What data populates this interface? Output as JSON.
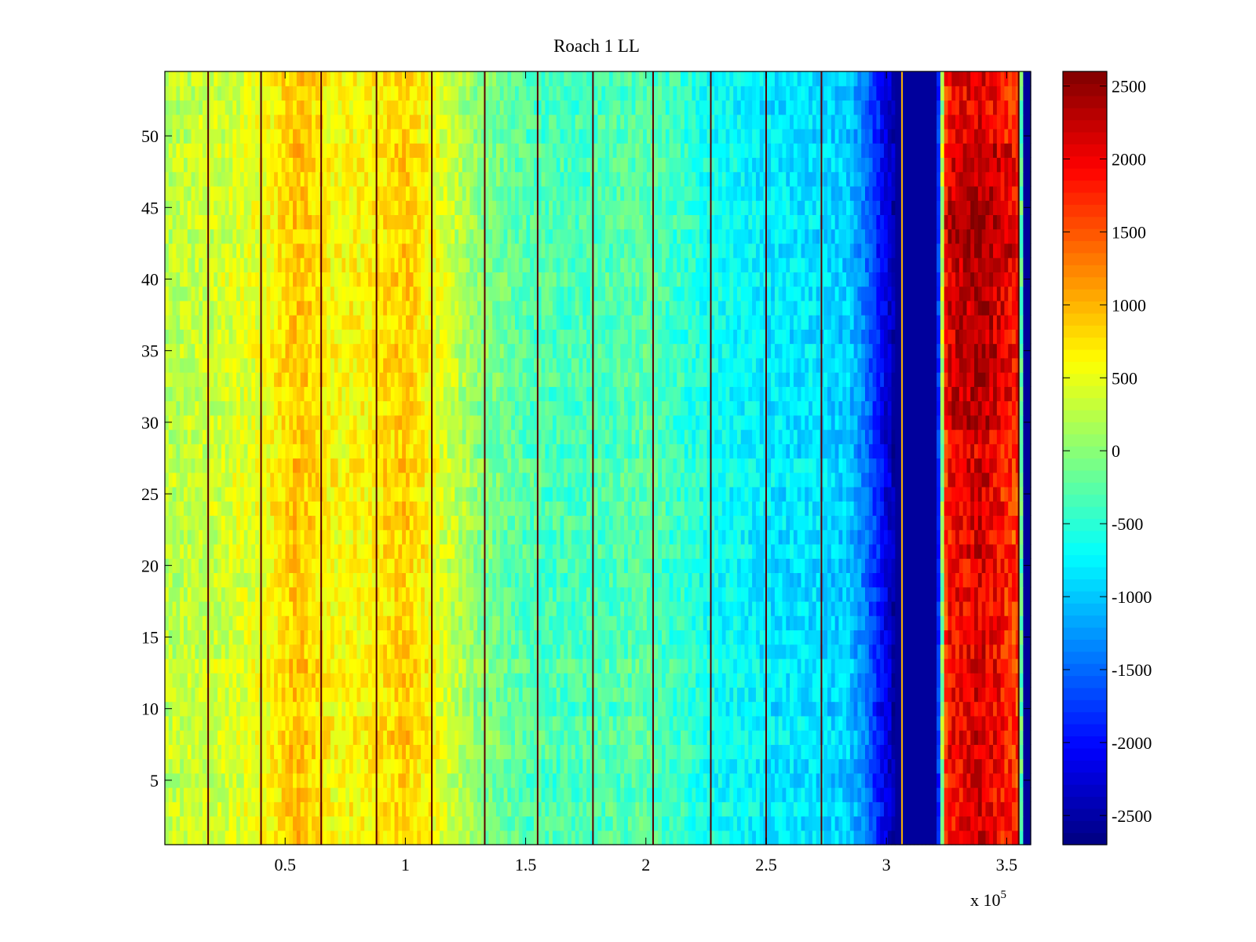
{
  "chart_data": {
    "type": "heatmap",
    "title": "Roach 1 LL",
    "xlabel": "",
    "ylabel": "",
    "x_range": [
      0,
      360000
    ],
    "y_range": [
      0.5,
      54.5
    ],
    "rows": 54,
    "x_ticks": [
      {
        "value": 50000,
        "label": "0.5"
      },
      {
        "value": 100000,
        "label": "1"
      },
      {
        "value": 150000,
        "label": "1.5"
      },
      {
        "value": 200000,
        "label": "2"
      },
      {
        "value": 250000,
        "label": "2.5"
      },
      {
        "value": 300000,
        "label": "3"
      },
      {
        "value": 350000,
        "label": "3.5"
      }
    ],
    "x_multiplier": {
      "base": "x 10",
      "exponent": "5"
    },
    "y_ticks": [
      {
        "value": 5,
        "label": "5"
      },
      {
        "value": 10,
        "label": "10"
      },
      {
        "value": 15,
        "label": "15"
      },
      {
        "value": 20,
        "label": "20"
      },
      {
        "value": 25,
        "label": "25"
      },
      {
        "value": 30,
        "label": "30"
      },
      {
        "value": 35,
        "label": "35"
      },
      {
        "value": 40,
        "label": "40"
      },
      {
        "value": 45,
        "label": "45"
      },
      {
        "value": 50,
        "label": "50"
      }
    ],
    "colorbar": {
      "range": [
        -2700,
        2600
      ],
      "colormap": "jet",
      "ticks": [
        {
          "value": 2500,
          "label": "2500"
        },
        {
          "value": 2000,
          "label": "2000"
        },
        {
          "value": 1500,
          "label": "1500"
        },
        {
          "value": 1000,
          "label": "1000"
        },
        {
          "value": 500,
          "label": "500"
        },
        {
          "value": 0,
          "label": "0"
        },
        {
          "value": -500,
          "label": "-500"
        },
        {
          "value": -1000,
          "label": "-1000"
        },
        {
          "value": -1500,
          "label": "-1500"
        },
        {
          "value": -2000,
          "label": "-2000"
        },
        {
          "value": -2500,
          "label": "-2500"
        }
      ]
    },
    "value_profile": [
      {
        "x": 0,
        "value": 250
      },
      {
        "x": 20000,
        "value": 350
      },
      {
        "x": 40000,
        "value": 500
      },
      {
        "x": 55000,
        "value": 950
      },
      {
        "x": 70000,
        "value": 600
      },
      {
        "x": 85000,
        "value": 650
      },
      {
        "x": 100000,
        "value": 900
      },
      {
        "x": 110000,
        "value": 600
      },
      {
        "x": 130000,
        "value": 0
      },
      {
        "x": 150000,
        "value": -300
      },
      {
        "x": 175000,
        "value": -350
      },
      {
        "x": 200000,
        "value": -250
      },
      {
        "x": 225000,
        "value": -600
      },
      {
        "x": 250000,
        "value": -800
      },
      {
        "x": 270000,
        "value": -850
      },
      {
        "x": 285000,
        "value": -1000
      },
      {
        "x": 292000,
        "value": -1450
      },
      {
        "x": 300000,
        "value": -2200
      },
      {
        "x": 304000,
        "value": -2550
      },
      {
        "x": 321000,
        "value": -2550
      },
      {
        "x": 322500,
        "value": -800
      },
      {
        "x": 325000,
        "value": 1900
      },
      {
        "x": 340000,
        "value": 2150
      },
      {
        "x": 355000,
        "value": 1600
      },
      {
        "x": 357500,
        "value": -2550
      },
      {
        "x": 360000,
        "value": -2550
      }
    ],
    "vertical_stripes_x": [
      18000,
      40000,
      65000,
      88000,
      111000,
      133000,
      155000,
      178000,
      203000,
      227000,
      250000,
      273000,
      306500,
      355000
    ]
  }
}
